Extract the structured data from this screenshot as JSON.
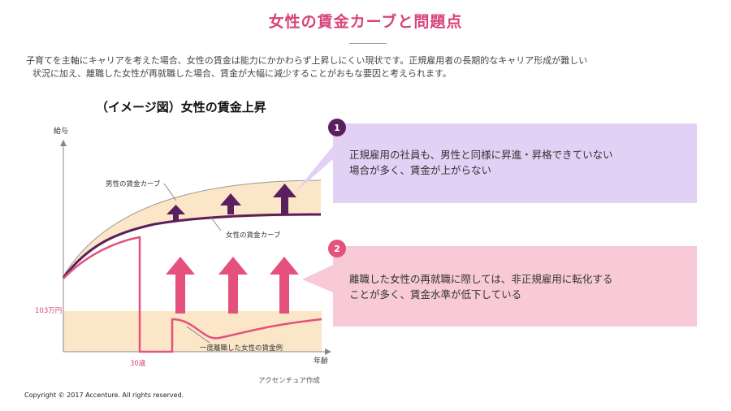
{
  "title": "女性の賃金カーブと問題点",
  "intro": {
    "line1": "子育てを主軸にキャリアを考えた場合、女性の賃金は能力にかかわらず上昇しにくい現状です。正規雇用者の長期的なキャリア形成が難しい",
    "line2": "状況に加え、離職した女性が再就職した場合、賃金が大幅に減少することがおもな要因と考えられます。"
  },
  "chart": {
    "title": "（イメージ図）女性の賃金上昇",
    "y_axis_label": "給与",
    "x_axis_label": "年齢",
    "male_curve_label": "男性の賃金カーブ",
    "female_curve_label": "女性の賃金カーブ",
    "reemployed_label": "一度離職した女性の賃金例",
    "wage_line_label": "103万円",
    "age_label": "30歳",
    "source": "アクセンチュア作成"
  },
  "callouts": [
    {
      "number": "1",
      "line1": "正規雇用の社員も、男性と同様に昇進・昇格できていない",
      "line2": "場合が多く、賃金が上がらない"
    },
    {
      "number": "2",
      "line1": "離職した女性の再就職に際しては、非正規雇用に転化する",
      "line2": "ことが多く、賃金水準が低下している"
    }
  ],
  "copyright": "Copyright © 2017 Accenture.  All rights reserved.",
  "colors": {
    "accent_pink": "#d8437a",
    "purple": "#5a1f5e",
    "purple_light": "#e2d0f5",
    "pink_light": "#f8c9d6",
    "pink_arrow": "#e5517d",
    "band": "#fbe6c8",
    "badge": "#5a1f5e"
  }
}
